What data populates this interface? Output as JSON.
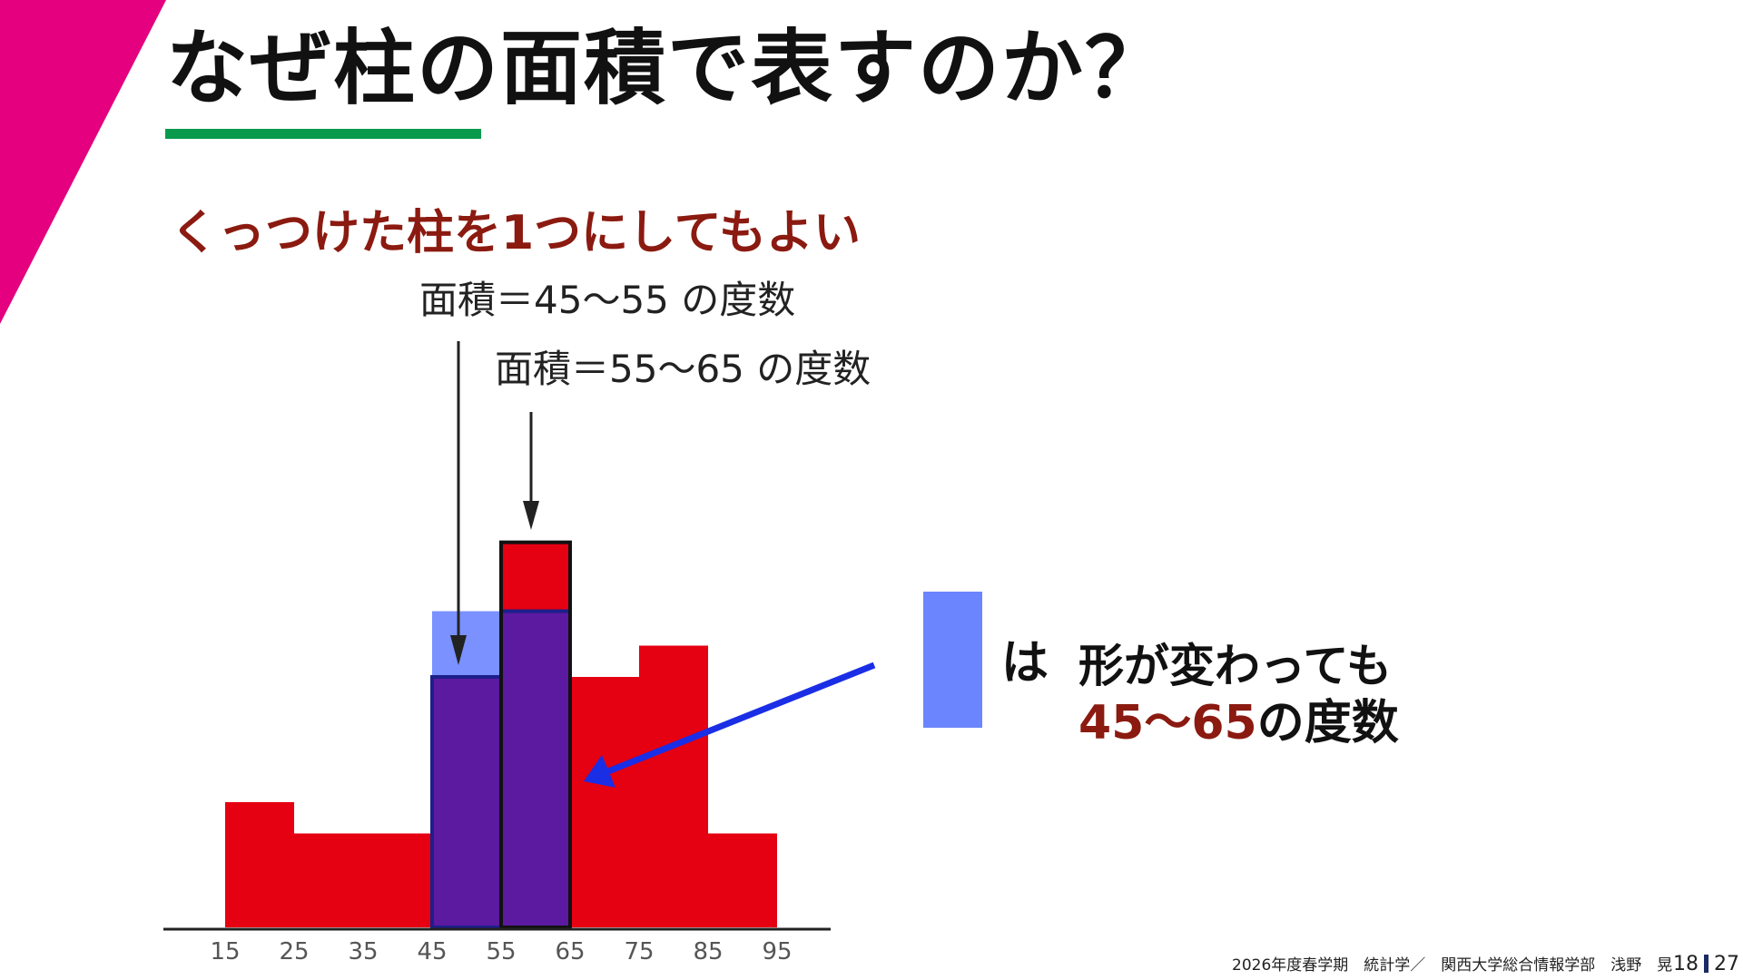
{
  "title": "なぜ柱の面積で表すのか？",
  "subtitle": "くっつけた柱を1つにしてもよい",
  "annotations": {
    "label_45_55": "面積＝45〜55 の度数",
    "label_55_65": "面積＝55〜65 の度数"
  },
  "legend": {
    "ha": "は",
    "line1": "形が変わっても",
    "line2_red": "45〜65",
    "line2_rest": "の度数"
  },
  "footer": {
    "text": "2026年度春学期　統計学／　関西大学総合情報学部　浅野　晃",
    "page_current": "18",
    "page_total": "27"
  },
  "colors": {
    "accent_magenta": "#e4007f",
    "underline_green": "#0a9a4d",
    "bar_red": "#e50012",
    "overlay_blue": "#6b85ff",
    "highlight_purple": "#5b1aa0",
    "arrow_blue": "#1a2ee6",
    "text_dark_red": "#8b1a10"
  },
  "chart_data": {
    "type": "bar",
    "x_ticks": [
      "15",
      "25",
      "35",
      "45",
      "55",
      "65",
      "75",
      "85",
      "95"
    ],
    "bins": [
      {
        "from": 15,
        "to": 25,
        "height": 4
      },
      {
        "from": 25,
        "to": 35,
        "height": 3
      },
      {
        "from": 35,
        "to": 45,
        "height": 3
      },
      {
        "from": 45,
        "to": 55,
        "height": 8
      },
      {
        "from": 55,
        "to": 65,
        "height": 12.3
      },
      {
        "from": 65,
        "to": 75,
        "height": 8
      },
      {
        "from": 75,
        "to": 85,
        "height": 9
      },
      {
        "from": 85,
        "to": 95,
        "height": 3
      }
    ],
    "merged_bin": {
      "from": 45,
      "to": 65,
      "height": 10.1
    },
    "highlighted_bins": [
      {
        "from": 45,
        "to": 55
      },
      {
        "from": 55,
        "to": 65
      }
    ]
  }
}
